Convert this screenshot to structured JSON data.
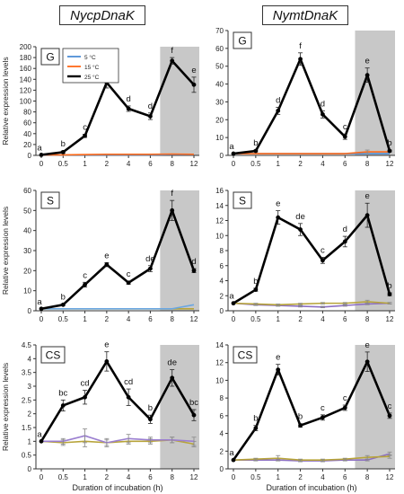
{
  "columns": [
    {
      "title": "NycpDnaK"
    },
    {
      "title": "NymtDnaK"
    }
  ],
  "legend": {
    "entries": [
      {
        "label": "5 °C",
        "color": "#4f8fd6"
      },
      {
        "label": "15 °C",
        "color": "#ff6a1a"
      },
      {
        "label": "25 °C",
        "color": "#000000"
      }
    ]
  },
  "shade_color": "#c8c8c8",
  "chart_data": [
    {
      "type": "line",
      "column": 0,
      "panel": "G",
      "x_categories": [
        "0",
        "0.5",
        "1",
        "2",
        "4",
        "6",
        "8",
        "12"
      ],
      "ylabel": "Relative expression levels",
      "xlabel": "",
      "ylim": [
        0,
        200
      ],
      "yticks": [
        0,
        20,
        40,
        60,
        80,
        100,
        120,
        140,
        160,
        180,
        200
      ],
      "shaded_categories": [
        "8",
        "12"
      ],
      "show_legend": true,
      "series": [
        {
          "name": "25 °C",
          "color": "#000000",
          "width": 2.6,
          "marker": true,
          "values": [
            1,
            6,
            36,
            134,
            86,
            72,
            174,
            130
          ],
          "errors": [
            0,
            2,
            3,
            10,
            5,
            6,
            6,
            14
          ]
        },
        {
          "name": "15 °C",
          "color": "#ff6a1a",
          "width": 1.6,
          "marker": false,
          "values": [
            1,
            1,
            1.5,
            2,
            2,
            2,
            2.5,
            2
          ],
          "errors": [
            0,
            0,
            0,
            0,
            0,
            0,
            0,
            0
          ]
        },
        {
          "name": "5 °C",
          "color": "#4f8fd6",
          "width": 1.6,
          "marker": false,
          "values": [
            1,
            1,
            1,
            1,
            1,
            1,
            1.5,
            1.5
          ],
          "errors": [
            0,
            0,
            0,
            0,
            0,
            0,
            0,
            0
          ]
        }
      ],
      "letters": [
        "a",
        "b",
        "c",
        "e",
        "d",
        "d",
        "f",
        "e"
      ]
    },
    {
      "type": "line",
      "column": 1,
      "panel": "G",
      "x_categories": [
        "0",
        "0.5",
        "1",
        "2",
        "4",
        "6",
        "8",
        "12"
      ],
      "ylabel": "",
      "xlabel": "",
      "ylim": [
        0,
        70
      ],
      "yticks": [
        0,
        10,
        20,
        30,
        40,
        50,
        60,
        70
      ],
      "shaded_categories": [
        "8",
        "12"
      ],
      "show_legend": false,
      "series": [
        {
          "name": "25 °C",
          "color": "#000000",
          "width": 2.6,
          "marker": true,
          "values": [
            1,
            2.5,
            25,
            54,
            23,
            10.5,
            45,
            2.5
          ],
          "errors": [
            0,
            0.5,
            2,
            3.5,
            2,
            1.5,
            4,
            0.5
          ]
        },
        {
          "name": "15 °C",
          "color": "#ff6a1a",
          "width": 1.6,
          "marker": false,
          "values": [
            1,
            1,
            1,
            1,
            1,
            1,
            2,
            2
          ],
          "errors": [
            0,
            0,
            0,
            0,
            0,
            0,
            1,
            0
          ]
        },
        {
          "name": "5 °C",
          "color": "#4f8fd6",
          "width": 1.6,
          "marker": false,
          "values": [
            1,
            1,
            1,
            1,
            1,
            1,
            1,
            1
          ],
          "errors": [
            0,
            0,
            0,
            0,
            0,
            0,
            0,
            0
          ]
        }
      ],
      "letters": [
        "a",
        "b",
        "d",
        "f",
        "d",
        "c",
        "e",
        "b"
      ]
    },
    {
      "type": "line",
      "column": 0,
      "panel": "S",
      "x_categories": [
        "0",
        "0.5",
        "1",
        "2",
        "4",
        "6",
        "8",
        "12"
      ],
      "ylabel": "Relative expression levels",
      "xlabel": "",
      "ylim": [
        0,
        60
      ],
      "yticks": [
        0,
        10,
        20,
        30,
        40,
        50,
        60
      ],
      "shaded_categories": [
        "8",
        "12"
      ],
      "show_legend": false,
      "series": [
        {
          "name": "25 °C",
          "color": "#000000",
          "width": 2.6,
          "marker": true,
          "values": [
            1,
            3,
            13,
            23,
            14,
            21,
            50,
            20
          ],
          "errors": [
            0,
            0.4,
            1.2,
            1,
            0.8,
            1.5,
            5,
            1
          ]
        },
        {
          "name": "5 °C",
          "color": "#6aa6e0",
          "width": 1.6,
          "marker": false,
          "values": [
            1,
            1,
            1,
            1,
            1,
            1,
            1,
            3
          ],
          "errors": [
            0,
            0,
            0,
            0,
            0,
            0,
            0,
            0
          ]
        },
        {
          "name": "15 °C",
          "color": "#b7a43a",
          "width": 1.6,
          "marker": false,
          "values": [
            1,
            1,
            1,
            1,
            1,
            1,
            1,
            1
          ],
          "errors": [
            0,
            0,
            0,
            0,
            0,
            0,
            0,
            0
          ]
        }
      ],
      "letters": [
        "a",
        "b",
        "c",
        "e",
        "c",
        "de",
        "f",
        "d"
      ]
    },
    {
      "type": "line",
      "column": 1,
      "panel": "S",
      "x_categories": [
        "0",
        "0.5",
        "1",
        "2",
        "4",
        "6",
        "8",
        "12"
      ],
      "ylabel": "",
      "xlabel": "",
      "ylim": [
        0,
        16
      ],
      "yticks": [
        0,
        2,
        4,
        6,
        8,
        10,
        12,
        14,
        16
      ],
      "shaded_categories": [
        "8",
        "12"
      ],
      "show_legend": false,
      "series": [
        {
          "name": "25 °C",
          "color": "#000000",
          "width": 2.6,
          "marker": true,
          "values": [
            1,
            2.8,
            12.4,
            10.8,
            6.7,
            9.2,
            12.7,
            2.2
          ],
          "errors": [
            0,
            0.2,
            0.9,
            0.8,
            0.4,
            0.7,
            1.6,
            0.2
          ]
        },
        {
          "name": "15 °C",
          "color": "#b7a43a",
          "width": 1.6,
          "marker": false,
          "values": [
            1,
            0.9,
            0.8,
            0.9,
            1,
            1,
            1.2,
            1
          ],
          "errors": [
            0,
            0.1,
            0.1,
            0.1,
            0.1,
            0.1,
            0.2,
            0.1
          ]
        },
        {
          "name": "5 °C",
          "color": "#8c6fc2",
          "width": 1.6,
          "marker": false,
          "values": [
            1,
            0.8,
            0.7,
            0.6,
            0.5,
            0.7,
            0.9,
            1
          ],
          "errors": [
            0,
            0.1,
            0.1,
            0.1,
            0.1,
            0.1,
            0.1,
            0.1
          ]
        }
      ],
      "letters": [
        "a",
        "b",
        "e",
        "de",
        "c",
        "d",
        "e",
        "b"
      ]
    },
    {
      "type": "line",
      "column": 0,
      "panel": "CS",
      "x_categories": [
        "0",
        "0.5",
        "1",
        "2",
        "4",
        "6",
        "8",
        "12"
      ],
      "ylabel": "Relative expression levels",
      "xlabel": "Duration of incubation (h)",
      "ylim": [
        0,
        4.5
      ],
      "yticks": [
        0,
        0.5,
        1,
        1.5,
        2,
        2.5,
        3,
        3.5,
        4,
        4.5
      ],
      "shaded_categories": [
        "8",
        "12"
      ],
      "show_legend": false,
      "series": [
        {
          "name": "25 °C",
          "color": "#000000",
          "width": 2.6,
          "marker": true,
          "values": [
            1,
            2.3,
            2.6,
            3.9,
            2.6,
            1.8,
            3.3,
            1.95
          ],
          "errors": [
            0,
            0.2,
            0.25,
            0.35,
            0.3,
            0.15,
            0.3,
            0.2
          ]
        },
        {
          "name": "5 °C",
          "color": "#9b7fd0",
          "width": 1.6,
          "marker": false,
          "values": [
            1,
            1,
            1.2,
            0.95,
            1.1,
            1.05,
            1.05,
            1
          ],
          "errors": [
            0,
            0.1,
            0.25,
            0.15,
            0.15,
            0.1,
            0.1,
            0.15
          ]
        },
        {
          "name": "15 °C",
          "color": "#b7a43a",
          "width": 1.6,
          "marker": false,
          "values": [
            1,
            0.95,
            1,
            0.95,
            1,
            1,
            1.05,
            0.9
          ],
          "errors": [
            0,
            0.1,
            0.2,
            0.1,
            0.1,
            0.1,
            0.1,
            0.1
          ]
        }
      ],
      "letters": [
        "a",
        "bc",
        "cd",
        "e",
        "cd",
        "b",
        "de",
        "bc"
      ]
    },
    {
      "type": "line",
      "column": 1,
      "panel": "CS",
      "x_categories": [
        "0",
        "0.5",
        "1",
        "2",
        "4",
        "6",
        "8",
        "12"
      ],
      "ylabel": "",
      "xlabel": "Duration of incubation (h)",
      "ylim": [
        0,
        14
      ],
      "yticks": [
        0,
        2,
        4,
        6,
        8,
        10,
        12,
        14
      ],
      "shaded_categories": [
        "8",
        "12"
      ],
      "show_legend": false,
      "series": [
        {
          "name": "25 °C",
          "color": "#000000",
          "width": 2.6,
          "marker": true,
          "values": [
            1,
            4.6,
            11.2,
            4.9,
            5.8,
            6.9,
            12.1,
            6.0
          ],
          "errors": [
            0,
            0.3,
            0.6,
            0.2,
            0.3,
            0.3,
            1.1,
            0.3
          ]
        },
        {
          "name": "15 °C",
          "color": "#b7a43a",
          "width": 1.6,
          "marker": false,
          "values": [
            1,
            1.1,
            1.2,
            1.0,
            1.0,
            1.1,
            1.3,
            1.4
          ],
          "errors": [
            0,
            0.1,
            0.3,
            0.1,
            0.1,
            0.1,
            0.2,
            0.2
          ]
        },
        {
          "name": "5 °C",
          "color": "#8c6fc2",
          "width": 1.6,
          "marker": false,
          "values": [
            1,
            1.0,
            1.0,
            0.9,
            0.9,
            1.0,
            1.0,
            1.7
          ],
          "errors": [
            0,
            0.1,
            0.1,
            0.1,
            0.1,
            0.1,
            0.1,
            0.2
          ]
        }
      ],
      "letters": [
        "a",
        "b",
        "e",
        "b",
        "c",
        "c",
        "e",
        "c"
      ]
    }
  ]
}
